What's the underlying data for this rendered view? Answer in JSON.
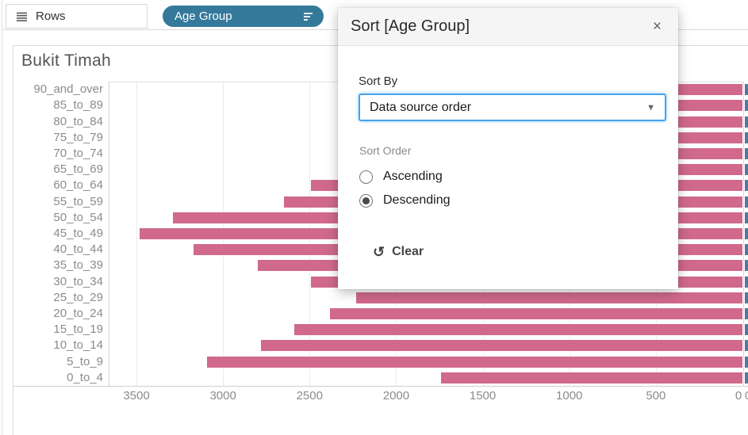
{
  "shelf": {
    "rows_label": "Rows",
    "pill": {
      "label": "Age Group",
      "color": "#35799a"
    }
  },
  "sheet": {
    "title": "Bukit Timah"
  },
  "dialog": {
    "title": "Sort [Age Group]",
    "close_icon": "×",
    "sort_by_label": "Sort By",
    "sort_by_value": "Data source order",
    "dropdown_caret_icon": "▼",
    "sort_order_label": "Sort Order",
    "options": [
      {
        "label": "Ascending",
        "selected": false
      },
      {
        "label": "Descending",
        "selected": true
      }
    ],
    "clear_icon": "↺",
    "clear_label": "Clear",
    "accent_color": "#47a3ee"
  },
  "chart_data": {
    "type": "bar",
    "orientation": "horizontal",
    "title": "Bukit Timah",
    "categories": [
      "90_and_over",
      "85_to_89",
      "80_to_84",
      "75_to_79",
      "70_to_74",
      "65_to_69",
      "60_to_64",
      "55_to_59",
      "50_to_54",
      "45_to_49",
      "40_to_44",
      "35_to_39",
      "30_to_34",
      "25_to_29",
      "20_to_24",
      "15_to_19",
      "10_to_14",
      "5_to_9",
      "0_to_4"
    ],
    "values": [
      500,
      650,
      900,
      1200,
      1500,
      2000,
      2490,
      2650,
      3290,
      3480,
      3170,
      2800,
      2490,
      2230,
      2380,
      2590,
      2780,
      3090,
      1740
    ],
    "values_note": "first six bars are partially hidden behind the sort dialog; their lengths are estimated",
    "x_ticks": [
      3500,
      3000,
      2500,
      2000,
      1500,
      1000,
      500,
      0
    ],
    "x_axis_reversed": true,
    "xlim": [
      3660,
      0
    ],
    "grid": true,
    "legend": false,
    "bar_color": "#d0698c",
    "adjacent_panel": {
      "bar_color": "#4e79a7",
      "tick_label": "0"
    }
  }
}
